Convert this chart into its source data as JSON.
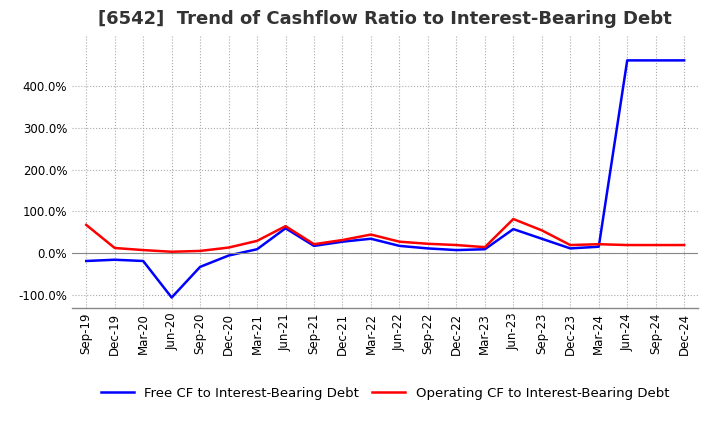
{
  "title": "[6542]  Trend of Cashflow Ratio to Interest-Bearing Debt",
  "x_labels": [
    "Sep-19",
    "Dec-19",
    "Mar-20",
    "Jun-20",
    "Sep-20",
    "Dec-20",
    "Mar-21",
    "Jun-21",
    "Sep-21",
    "Dec-21",
    "Mar-22",
    "Jun-22",
    "Sep-22",
    "Dec-22",
    "Mar-23",
    "Jun-23",
    "Sep-23",
    "Dec-23",
    "Mar-24",
    "Jun-24",
    "Sep-24",
    "Dec-24"
  ],
  "operating_cf": [
    0.68,
    0.13,
    0.08,
    0.04,
    0.06,
    0.14,
    0.3,
    0.65,
    0.22,
    0.32,
    0.45,
    0.28,
    0.23,
    0.2,
    0.15,
    0.82,
    0.55,
    0.2,
    0.22,
    0.2,
    0.2,
    0.2
  ],
  "free_cf": [
    -0.18,
    -0.15,
    -0.18,
    -1.05,
    -0.32,
    -0.05,
    0.1,
    0.6,
    0.18,
    0.28,
    0.35,
    0.18,
    0.12,
    0.08,
    0.1,
    0.58,
    0.35,
    0.12,
    0.16,
    4.6,
    4.6,
    4.6
  ],
  "operating_color": "#ff0000",
  "free_color": "#0000ff",
  "ylim": [
    -1.3,
    5.2
  ],
  "yticks": [
    -1.0,
    0.0,
    1.0,
    2.0,
    3.0,
    4.0
  ],
  "ytick_labels": [
    "-100.0%",
    "0.0%",
    "100.0%",
    "200.0%",
    "300.0%",
    "400.0%"
  ],
  "background_color": "#ffffff",
  "plot_bg_color": "#ffffff",
  "grid_color": "#aaaaaa",
  "title_fontsize": 13,
  "axis_fontsize": 8.5,
  "legend_fontsize": 9.5
}
